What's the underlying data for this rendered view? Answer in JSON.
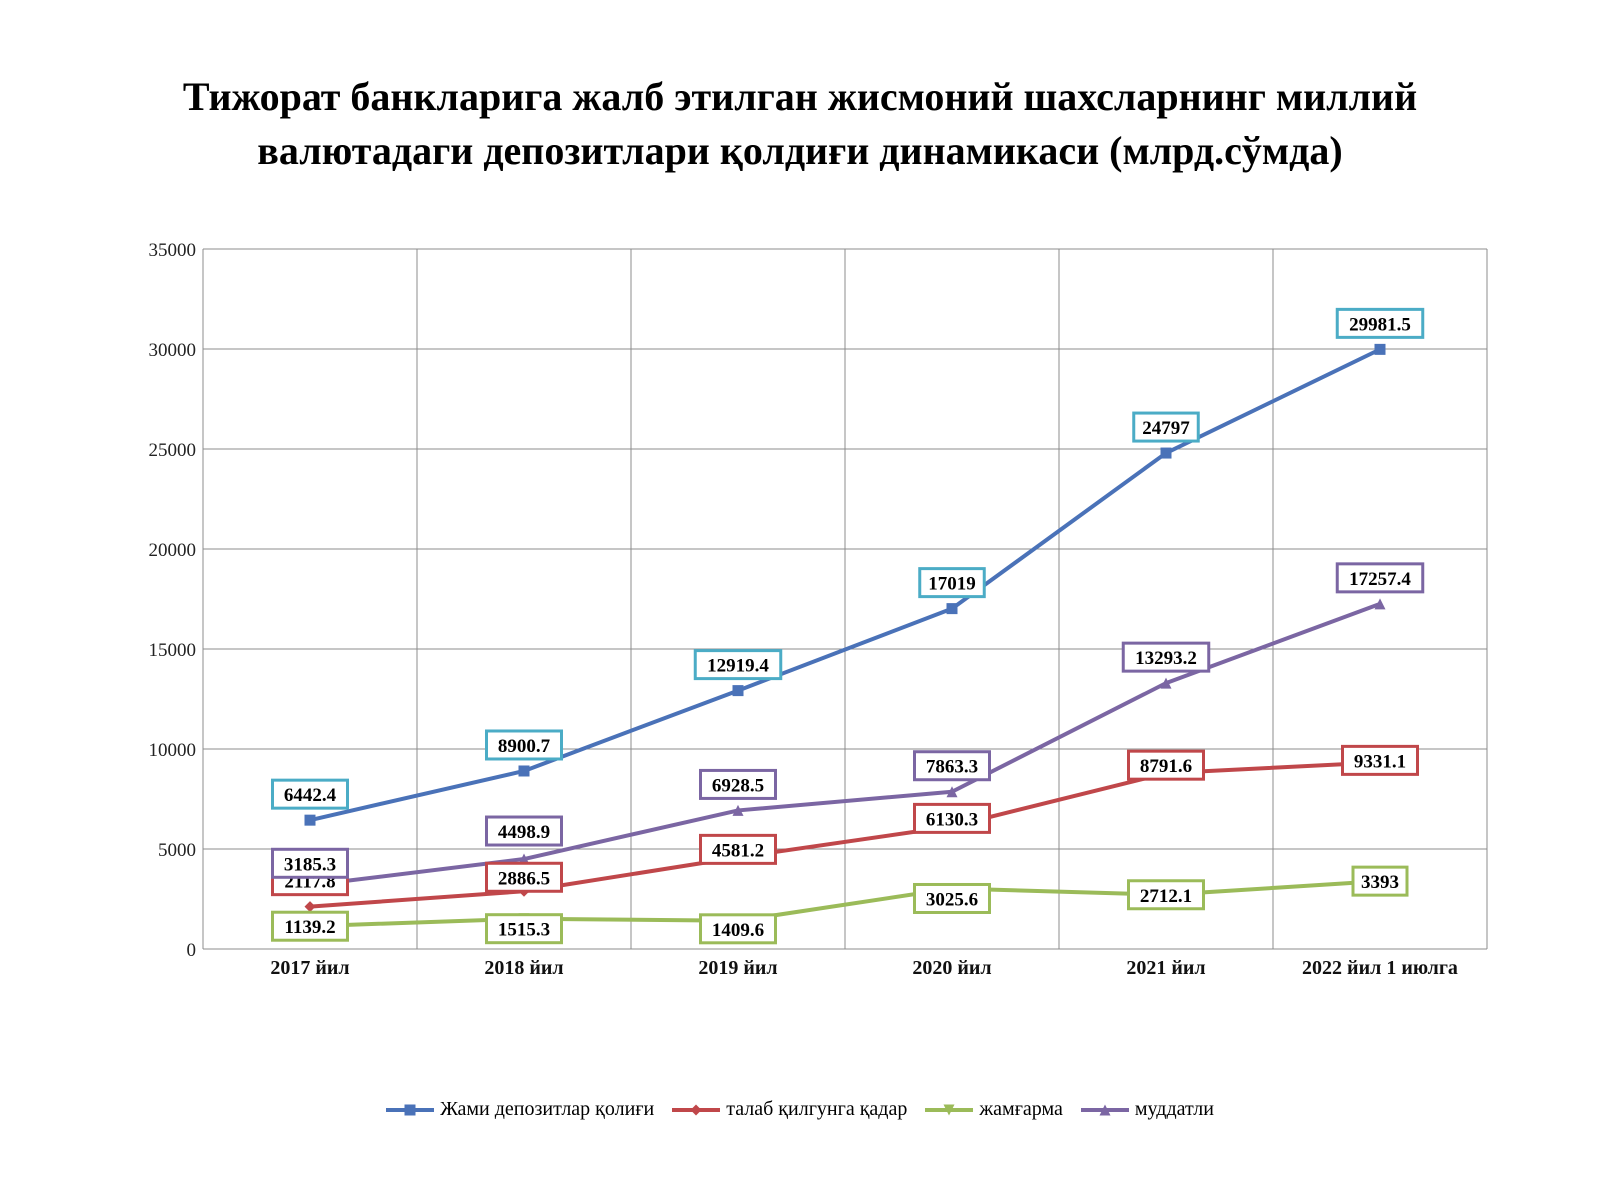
{
  "chart_data": {
    "type": "line",
    "title_lines": [
      "Тижорат банкларига жалб этилган жисмоний шахсларнинг миллий",
      "валютадаги депозитлари қолдиғи динамикаси (млрд.сўмда)"
    ],
    "categories": [
      "2017 йил",
      "2018 йил",
      "2019 йил",
      "2020 йил",
      "2021 йил",
      "2022 йил 1 июлга"
    ],
    "ylim": [
      0,
      35000
    ],
    "yticks": [
      0,
      5000,
      10000,
      15000,
      20000,
      25000,
      30000,
      35000
    ],
    "grid": true,
    "legend_position": "bottom",
    "series": [
      {
        "name": "Жами депозитлар қолиғи",
        "values": [
          6442.4,
          8900.7,
          12919.4,
          17019,
          24797,
          29981.5
        ],
        "labels": [
          "6442.4",
          "8900.7",
          "12919.4",
          "17019",
          "24797",
          "29981.5"
        ],
        "color": "#4a72b8",
        "label_border": "#4bacc6",
        "marker": "square"
      },
      {
        "name": "талаб қилгунга қадар",
        "values": [
          2117.8,
          2886.5,
          4581.2,
          6130.3,
          8791.6,
          9331.1
        ],
        "labels": [
          "2117.8",
          "2886.5",
          "4581.2",
          "6130.3",
          "8791.6",
          "9331.1"
        ],
        "color": "#c0474a",
        "label_border": "#c0474a",
        "marker": "diamond"
      },
      {
        "name": "жамғарма",
        "values": [
          1139.2,
          1515.3,
          1409.6,
          3025.6,
          2712.1,
          3393
        ],
        "labels": [
          "1139.2",
          "1515.3",
          "1409.6",
          "3025.6",
          "2712.1",
          "3393"
        ],
        "color": "#9bbb59",
        "label_border": "#9bbb59",
        "marker": "triangle-down"
      },
      {
        "name": "муддатли",
        "values": [
          3185.3,
          4498.9,
          6928.5,
          7863.3,
          13293.2,
          17257.4
        ],
        "labels": [
          "3185.3",
          "4498.9",
          "6928.5",
          "7863.3",
          "13293.2",
          "17257.4"
        ],
        "color": "#7b66a3",
        "label_border": "#7b66a3",
        "marker": "triangle"
      }
    ]
  }
}
